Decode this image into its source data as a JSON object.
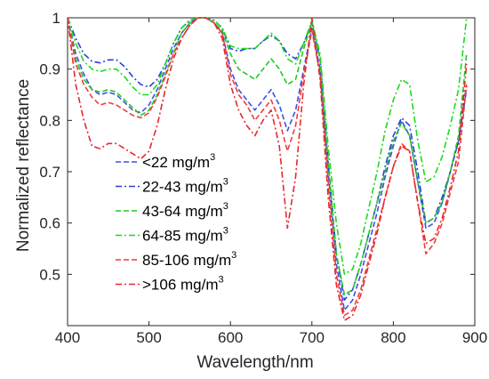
{
  "chart_data": {
    "type": "line",
    "xlabel": "Wavelength/nm",
    "ylabel": "Normalized reflectance",
    "xlim": [
      400,
      900
    ],
    "ylim": [
      0.4,
      1.0
    ],
    "x_ticks": [
      400,
      500,
      600,
      700,
      800,
      900
    ],
    "y_ticks": [
      0.5,
      0.6,
      0.7,
      0.8,
      0.9,
      1
    ],
    "grid": false,
    "legend_position": "lower-left",
    "series": [
      {
        "name": "<22 mg/m3",
        "label_text": "<22 mg/m",
        "label_sup": "3",
        "color": "#3c50e8",
        "dash": "dashed",
        "x": [
          400,
          410,
          420,
          430,
          440,
          450,
          460,
          470,
          480,
          490,
          500,
          510,
          520,
          530,
          540,
          550,
          560,
          570,
          580,
          590,
          600,
          610,
          620,
          630,
          640,
          650,
          660,
          670,
          680,
          690,
          700,
          710,
          720,
          730,
          740,
          750,
          760,
          770,
          780,
          790,
          800,
          810,
          820,
          830,
          840,
          850,
          860,
          870,
          880,
          890
        ],
        "y": [
          1.0,
          0.93,
          0.89,
          0.86,
          0.85,
          0.855,
          0.85,
          0.835,
          0.82,
          0.815,
          0.83,
          0.86,
          0.9,
          0.94,
          0.97,
          0.99,
          1.0,
          1.0,
          0.99,
          0.97,
          0.9,
          0.86,
          0.84,
          0.82,
          0.84,
          0.86,
          0.83,
          0.78,
          0.82,
          0.9,
          0.98,
          0.9,
          0.7,
          0.52,
          0.43,
          0.45,
          0.5,
          0.56,
          0.62,
          0.69,
          0.75,
          0.8,
          0.77,
          0.68,
          0.59,
          0.6,
          0.64,
          0.7,
          0.76,
          0.86
        ]
      },
      {
        "name": "22-43 mg/m3",
        "label_text": "22-43 mg/m",
        "label_sup": "3",
        "color": "#2b3fd9",
        "dash": "dashdot",
        "x": [
          400,
          410,
          420,
          430,
          440,
          450,
          460,
          470,
          480,
          490,
          500,
          510,
          520,
          530,
          540,
          550,
          560,
          570,
          580,
          590,
          600,
          610,
          620,
          630,
          640,
          650,
          660,
          670,
          680,
          690,
          700,
          710,
          720,
          730,
          740,
          750,
          760,
          770,
          780,
          790,
          800,
          810,
          820,
          830,
          840,
          850,
          860,
          870,
          880,
          890
        ],
        "y": [
          1.0,
          0.96,
          0.93,
          0.915,
          0.912,
          0.918,
          0.918,
          0.905,
          0.885,
          0.87,
          0.865,
          0.88,
          0.91,
          0.95,
          0.98,
          0.995,
          1.0,
          1.0,
          0.995,
          0.98,
          0.94,
          0.935,
          0.94,
          0.94,
          0.955,
          0.965,
          0.955,
          0.93,
          0.92,
          0.95,
          0.99,
          0.92,
          0.72,
          0.54,
          0.45,
          0.47,
          0.52,
          0.58,
          0.64,
          0.71,
          0.77,
          0.805,
          0.79,
          0.7,
          0.6,
          0.61,
          0.65,
          0.7,
          0.76,
          0.87
        ]
      },
      {
        "name": "43-64 mg/m3",
        "label_text": "43-64 mg/m",
        "label_sup": "3",
        "color": "#22c822",
        "dash": "dashed",
        "x": [
          400,
          410,
          420,
          430,
          440,
          450,
          460,
          470,
          480,
          490,
          500,
          510,
          520,
          530,
          540,
          550,
          560,
          570,
          580,
          590,
          600,
          610,
          620,
          630,
          640,
          650,
          660,
          670,
          680,
          690,
          700,
          710,
          720,
          730,
          740,
          750,
          760,
          770,
          780,
          790,
          800,
          810,
          820,
          830,
          840,
          850,
          860,
          870,
          880,
          890
        ],
        "y": [
          1.0,
          0.92,
          0.88,
          0.86,
          0.855,
          0.86,
          0.855,
          0.84,
          0.825,
          0.81,
          0.82,
          0.85,
          0.89,
          0.93,
          0.97,
          0.99,
          1.0,
          1.0,
          0.99,
          0.975,
          0.93,
          0.9,
          0.89,
          0.88,
          0.9,
          0.92,
          0.9,
          0.87,
          0.88,
          0.94,
          0.99,
          0.92,
          0.72,
          0.54,
          0.46,
          0.47,
          0.52,
          0.58,
          0.64,
          0.7,
          0.76,
          0.795,
          0.77,
          0.68,
          0.6,
          0.61,
          0.64,
          0.7,
          0.77,
          0.93
        ]
      },
      {
        "name": "64-85 mg/m3",
        "label_text": "64-85 mg/m",
        "label_sup": "3",
        "color": "#1adc1a",
        "dash": "dashdot",
        "x": [
          400,
          410,
          420,
          430,
          440,
          450,
          460,
          470,
          480,
          490,
          500,
          510,
          520,
          530,
          540,
          550,
          560,
          570,
          580,
          590,
          600,
          610,
          620,
          630,
          640,
          650,
          660,
          670,
          680,
          690,
          700,
          710,
          720,
          730,
          740,
          750,
          760,
          770,
          780,
          790,
          800,
          810,
          820,
          830,
          840,
          850,
          860,
          870,
          880,
          890
        ],
        "y": [
          1.0,
          0.95,
          0.915,
          0.9,
          0.895,
          0.9,
          0.9,
          0.885,
          0.865,
          0.85,
          0.85,
          0.87,
          0.91,
          0.95,
          0.98,
          0.995,
          1.0,
          1.0,
          0.995,
          0.98,
          0.945,
          0.94,
          0.94,
          0.94,
          0.955,
          0.97,
          0.955,
          0.92,
          0.91,
          0.95,
          0.995,
          0.93,
          0.75,
          0.6,
          0.5,
          0.51,
          0.56,
          0.63,
          0.7,
          0.78,
          0.84,
          0.88,
          0.87,
          0.76,
          0.68,
          0.69,
          0.73,
          0.79,
          0.86,
          1.0
        ]
      },
      {
        "name": "85-106 mg/m3",
        "label_text": "85-106 mg/m",
        "label_sup": "3",
        "color": "#f03c3c",
        "dash": "dashed",
        "x": [
          400,
          410,
          420,
          430,
          440,
          450,
          460,
          470,
          480,
          490,
          500,
          510,
          520,
          530,
          540,
          550,
          560,
          570,
          580,
          590,
          600,
          610,
          620,
          630,
          640,
          650,
          660,
          670,
          680,
          690,
          700,
          710,
          720,
          730,
          740,
          750,
          760,
          770,
          780,
          790,
          800,
          810,
          820,
          830,
          840,
          850,
          860,
          870,
          880,
          890
        ],
        "y": [
          1.0,
          0.91,
          0.87,
          0.845,
          0.83,
          0.835,
          0.83,
          0.82,
          0.81,
          0.805,
          0.815,
          0.845,
          0.885,
          0.93,
          0.96,
          0.985,
          1.0,
          1.0,
          0.99,
          0.97,
          0.89,
          0.85,
          0.83,
          0.8,
          0.82,
          0.84,
          0.8,
          0.74,
          0.79,
          0.89,
          0.975,
          0.89,
          0.68,
          0.5,
          0.42,
          0.43,
          0.47,
          0.53,
          0.59,
          0.65,
          0.71,
          0.755,
          0.74,
          0.64,
          0.54,
          0.56,
          0.6,
          0.66,
          0.72,
          0.87
        ]
      },
      {
        "name": ">106 mg/m3",
        "label_text": ">106 mg/m",
        "label_sup": "3",
        "color": "#e82828",
        "dash": "dashdot",
        "x": [
          400,
          410,
          420,
          430,
          440,
          450,
          460,
          470,
          480,
          490,
          500,
          510,
          520,
          530,
          540,
          550,
          560,
          570,
          580,
          590,
          600,
          610,
          620,
          630,
          640,
          650,
          660,
          670,
          680,
          690,
          700,
          710,
          720,
          730,
          740,
          750,
          760,
          770,
          780,
          790,
          800,
          810,
          820,
          830,
          840,
          850,
          860,
          870,
          880,
          890
        ],
        "y": [
          1.0,
          0.87,
          0.8,
          0.75,
          0.745,
          0.755,
          0.755,
          0.745,
          0.735,
          0.725,
          0.74,
          0.79,
          0.86,
          0.92,
          0.96,
          0.985,
          1.0,
          1.0,
          0.99,
          0.96,
          0.87,
          0.82,
          0.79,
          0.77,
          0.8,
          0.82,
          0.75,
          0.59,
          0.69,
          0.87,
          1.0,
          0.88,
          0.65,
          0.48,
          0.41,
          0.42,
          0.46,
          0.52,
          0.58,
          0.65,
          0.71,
          0.75,
          0.74,
          0.64,
          0.56,
          0.57,
          0.61,
          0.67,
          0.74,
          0.91
        ]
      }
    ]
  }
}
